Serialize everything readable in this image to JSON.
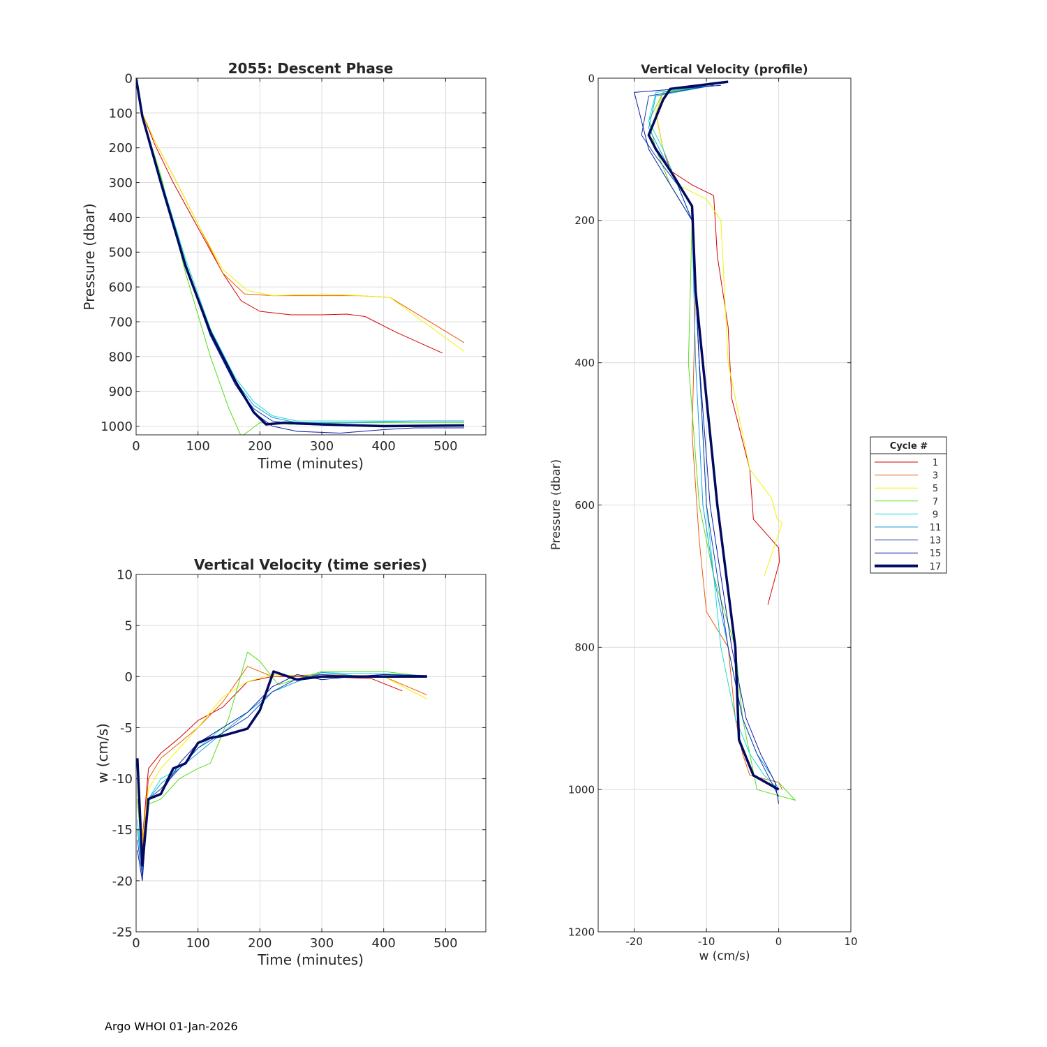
{
  "footer": "Argo WHOI 01-Jan-2026",
  "legend": {
    "title": "Cycle #",
    "entries": [
      {
        "label": "1",
        "color": "#d40000"
      },
      {
        "label": "3",
        "color": "#ea5a0a"
      },
      {
        "label": "5",
        "color": "#f2f200"
      },
      {
        "label": "7",
        "color": "#55dd1a"
      },
      {
        "label": "9",
        "color": "#16dcd2"
      },
      {
        "label": "11",
        "color": "#169be6"
      },
      {
        "label": "13",
        "color": "#1040b0"
      },
      {
        "label": "15",
        "color": "#0a1aa0"
      },
      {
        "label": "17",
        "color": "#000a60"
      }
    ]
  },
  "chart_data": [
    {
      "id": "descent",
      "type": "line",
      "title": "2055: Descent Phase",
      "xlabel": "Time (minutes)",
      "ylabel": "Pressure (dbar)",
      "xlim": [
        0,
        565
      ],
      "ylim": [
        0,
        1025
      ],
      "y_reversed": true,
      "xticks": [
        0,
        100,
        200,
        300,
        400,
        500
      ],
      "yticks": [
        0,
        100,
        200,
        300,
        400,
        500,
        600,
        700,
        800,
        900,
        1000
      ],
      "grid": true,
      "series": [
        {
          "name": "1",
          "x": [
            0,
            10,
            30,
            60,
            100,
            140,
            170,
            200,
            250,
            300,
            340,
            370,
            420,
            495
          ],
          "y": [
            0,
            100,
            190,
            300,
            430,
            560,
            640,
            670,
            680,
            680,
            678,
            685,
            730,
            790
          ]
        },
        {
          "name": "3",
          "x": [
            0,
            10,
            30,
            60,
            100,
            140,
            175,
            220,
            300,
            360,
            410,
            530
          ],
          "y": [
            0,
            100,
            180,
            280,
            420,
            560,
            620,
            625,
            625,
            625,
            630,
            760
          ]
        },
        {
          "name": "5",
          "x": [
            0,
            10,
            30,
            60,
            100,
            140,
            180,
            220,
            300,
            360,
            410,
            530
          ],
          "y": [
            0,
            100,
            180,
            280,
            420,
            550,
            610,
            625,
            620,
            625,
            630,
            785
          ]
        },
        {
          "name": "7",
          "x": [
            0,
            10,
            40,
            80,
            120,
            150,
            170,
            200,
            250,
            350,
            450,
            530
          ],
          "y": [
            0,
            110,
            280,
            560,
            800,
            950,
            1030,
            990,
            995,
            990,
            990,
            990
          ]
        },
        {
          "name": "9",
          "x": [
            0,
            10,
            40,
            80,
            120,
            160,
            190,
            220,
            260,
            350,
            450,
            530
          ],
          "y": [
            0,
            110,
            290,
            520,
            720,
            860,
            930,
            970,
            985,
            985,
            985,
            985
          ]
        },
        {
          "name": "11",
          "x": [
            0,
            10,
            40,
            80,
            120,
            160,
            190,
            220,
            260,
            350,
            450,
            530
          ],
          "y": [
            0,
            110,
            290,
            530,
            730,
            870,
            940,
            975,
            990,
            990,
            985,
            985
          ]
        },
        {
          "name": "13",
          "x": [
            0,
            10,
            40,
            80,
            120,
            160,
            190,
            220,
            260,
            350,
            450,
            530
          ],
          "y": [
            0,
            110,
            300,
            540,
            740,
            880,
            950,
            985,
            995,
            1000,
            1000,
            1000
          ]
        },
        {
          "name": "15",
          "x": [
            0,
            10,
            40,
            80,
            120,
            160,
            190,
            220,
            260,
            330,
            400,
            450,
            530
          ],
          "y": [
            0,
            110,
            300,
            540,
            740,
            880,
            960,
            1000,
            1015,
            1020,
            1010,
            1005,
            1005
          ]
        },
        {
          "name": "17",
          "x": [
            0,
            10,
            40,
            80,
            120,
            160,
            190,
            210,
            240,
            300,
            400,
            530
          ],
          "y": [
            0,
            110,
            300,
            540,
            730,
            870,
            960,
            995,
            990,
            995,
            1000,
            998
          ]
        }
      ]
    },
    {
      "id": "wtime",
      "type": "line",
      "title": "Vertical Velocity (time series)",
      "xlabel": "Time (minutes)",
      "ylabel": "w (cm/s)",
      "xlim": [
        0,
        565
      ],
      "ylim": [
        -25,
        10
      ],
      "y_reversed": false,
      "xticks": [
        0,
        100,
        200,
        300,
        400,
        500
      ],
      "yticks": [
        10,
        5,
        0,
        -5,
        -10,
        -15,
        -20,
        -25
      ],
      "grid": true,
      "series": [
        {
          "name": "1",
          "x": [
            2,
            10,
            20,
            40,
            70,
            100,
            140,
            180,
            220,
            300,
            380,
            430
          ],
          "y": [
            -10,
            -16,
            -9,
            -7.5,
            -6,
            -4.3,
            -3,
            -0.5,
            0,
            0,
            -0.2,
            -1.4
          ]
        },
        {
          "name": "3",
          "x": [
            2,
            10,
            20,
            40,
            70,
            100,
            140,
            180,
            220,
            300,
            400,
            470
          ],
          "y": [
            -12,
            -17,
            -10,
            -8,
            -6.5,
            -5,
            -2.5,
            1,
            0,
            0.2,
            0,
            -1.8
          ]
        },
        {
          "name": "5",
          "x": [
            2,
            10,
            20,
            40,
            70,
            100,
            140,
            180,
            220,
            300,
            400,
            470
          ],
          "y": [
            -11,
            -16,
            -11,
            -9,
            -7,
            -5,
            -2,
            -0.5,
            0.2,
            0,
            0,
            -2.2
          ]
        },
        {
          "name": "7",
          "x": [
            2,
            10,
            20,
            40,
            70,
            100,
            120,
            150,
            180,
            200,
            230,
            300,
            400,
            470
          ],
          "y": [
            -12,
            -18,
            -12.5,
            -12,
            -10,
            -9,
            -8.5,
            -4,
            2.4,
            1.5,
            -0.8,
            0.5,
            0.5,
            0
          ]
        },
        {
          "name": "9",
          "x": [
            2,
            10,
            20,
            40,
            70,
            100,
            140,
            180,
            220,
            260,
            300,
            350,
            400,
            470
          ],
          "y": [
            -14,
            -19,
            -12,
            -10,
            -9,
            -7,
            -5,
            -3.5,
            -1.5,
            -0.5,
            0.4,
            0.3,
            0.3,
            0
          ]
        },
        {
          "name": "11",
          "x": [
            2,
            10,
            20,
            40,
            70,
            100,
            140,
            180,
            220,
            260,
            300,
            350,
            400,
            470
          ],
          "y": [
            -15,
            -19,
            -12,
            -10.5,
            -9,
            -7.5,
            -5.5,
            -3.5,
            -1.5,
            -0.5,
            0.4,
            0.1,
            0,
            0
          ]
        },
        {
          "name": "13",
          "x": [
            2,
            10,
            20,
            40,
            70,
            100,
            140,
            180,
            220,
            260,
            300,
            350,
            400,
            470
          ],
          "y": [
            -16,
            -19.5,
            -12,
            -11,
            -9,
            -7,
            -5.5,
            -4,
            -1.5,
            -0.2,
            0.2,
            0,
            0,
            0
          ]
        },
        {
          "name": "15",
          "x": [
            2,
            10,
            20,
            40,
            70,
            100,
            140,
            180,
            220,
            260,
            300,
            350,
            400,
            470
          ],
          "y": [
            -17,
            -20,
            -12,
            -11.5,
            -8.5,
            -6.5,
            -5,
            -3.5,
            -1,
            0.2,
            -0.3,
            0,
            0.2,
            0.1
          ]
        },
        {
          "name": "17",
          "x": [
            2,
            10,
            20,
            40,
            60,
            80,
            100,
            120,
            140,
            180,
            200,
            222,
            260,
            300,
            350,
            400,
            470
          ],
          "y": [
            -8,
            -18.5,
            -12,
            -11.5,
            -9,
            -8.5,
            -6.5,
            -6,
            -5.8,
            -5.1,
            -3.3,
            0.5,
            -0.3,
            0,
            0,
            0,
            0
          ]
        }
      ]
    },
    {
      "id": "wprofile",
      "type": "line",
      "title": "Vertical Velocity (profile)",
      "xlabel": "w (cm/s)",
      "ylabel": "Pressure (dbar)",
      "xlim": [
        -25,
        10
      ],
      "ylim": [
        0,
        1200
      ],
      "y_reversed": true,
      "xticks": [
        -20,
        -10,
        0,
        10
      ],
      "yticks": [
        0,
        200,
        400,
        600,
        800,
        1000,
        1200
      ],
      "grid": true,
      "series": [
        {
          "name": "1",
          "x": [
            -9,
            -16,
            -17,
            -16,
            -15,
            -12,
            -9,
            -8.5,
            -7,
            -6.5,
            -4,
            -3.5,
            0,
            0.1,
            -1.5
          ],
          "y": [
            10,
            20,
            50,
            100,
            130,
            150,
            165,
            250,
            350,
            450,
            550,
            620,
            660,
            680,
            740
          ]
        },
        {
          "name": "3",
          "x": [
            -9,
            -16,
            -17,
            -16,
            -14,
            -12,
            -11.5,
            -12,
            -11,
            -10,
            -7,
            -6,
            -5,
            -4,
            0,
            0.5
          ],
          "y": [
            10,
            20,
            50,
            100,
            150,
            200,
            300,
            500,
            650,
            750,
            800,
            900,
            950,
            980,
            990,
            1000
          ]
        },
        {
          "name": "5",
          "x": [
            -9,
            -16,
            -17,
            -16,
            -14,
            -10,
            -8,
            -7,
            -6,
            -4,
            -1,
            -0.2,
            0.5,
            -2
          ],
          "y": [
            10,
            20,
            50,
            100,
            150,
            170,
            200,
            400,
            450,
            550,
            590,
            620,
            625,
            700
          ]
        },
        {
          "name": "7",
          "x": [
            -9,
            -16,
            -18,
            -17,
            -15,
            -12,
            -12.5,
            -11,
            -9,
            -6,
            -5,
            -3,
            2.3,
            0
          ],
          "y": [
            10,
            20,
            60,
            100,
            150,
            200,
            400,
            600,
            700,
            800,
            900,
            1000,
            1015,
            990
          ]
        },
        {
          "name": "9",
          "x": [
            -9,
            -17,
            -18,
            -16,
            -14,
            -12,
            -11,
            -10,
            -9,
            -8,
            -6,
            -4,
            -2,
            0
          ],
          "y": [
            10,
            20,
            60,
            100,
            150,
            200,
            400,
            600,
            700,
            800,
            900,
            950,
            980,
            1000
          ]
        },
        {
          "name": "11",
          "x": [
            -9,
            -17,
            -18,
            -16,
            -14,
            -12,
            -11.5,
            -10.5,
            -9,
            -7,
            -5,
            -3,
            -1,
            0
          ],
          "y": [
            10,
            25,
            70,
            110,
            150,
            200,
            400,
            600,
            700,
            800,
            900,
            950,
            980,
            1000
          ]
        },
        {
          "name": "13",
          "x": [
            -9,
            -18,
            -19,
            -17,
            -14,
            -12,
            -11,
            -10,
            -8.5,
            -7,
            -5,
            -3,
            -1,
            0
          ],
          "y": [
            10,
            25,
            80,
            110,
            150,
            200,
            400,
            600,
            700,
            800,
            900,
            950,
            990,
            1010
          ]
        },
        {
          "name": "15",
          "x": [
            -8,
            -20,
            -19,
            -18,
            -15,
            -12,
            -11,
            -9.5,
            -8,
            -6.5,
            -4.5,
            -2.5,
            -0.5,
            0
          ],
          "y": [
            10,
            20,
            60,
            100,
            150,
            200,
            400,
            600,
            700,
            800,
            900,
            950,
            990,
            1020
          ]
        },
        {
          "name": "17",
          "x": [
            -7,
            -15,
            -16,
            -18,
            -17,
            -15,
            -12,
            -11.5,
            -10,
            -8.5,
            -6,
            -5.5,
            -3.5,
            0
          ],
          "y": [
            5,
            15,
            30,
            80,
            100,
            130,
            180,
            300,
            450,
            600,
            800,
            930,
            980,
            1000
          ]
        }
      ]
    }
  ]
}
